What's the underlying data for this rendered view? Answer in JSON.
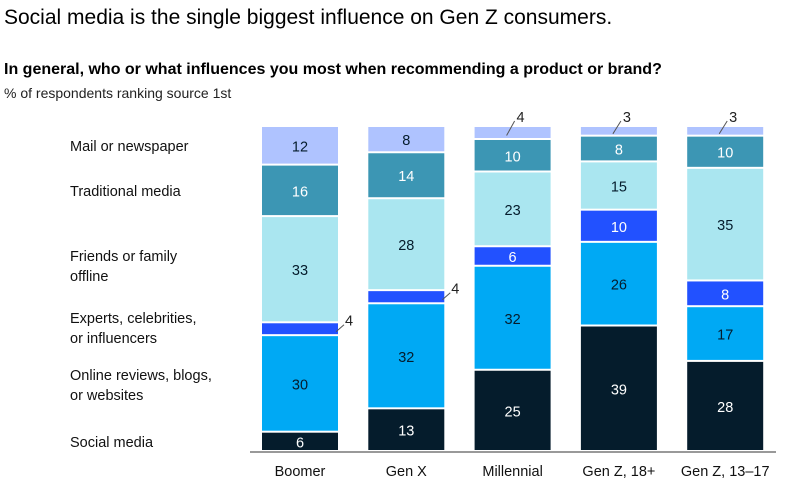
{
  "chart_data": {
    "type": "bar",
    "stacked": true,
    "title": "Social media is the single biggest influence on Gen Z consumers.",
    "question": "In general, who or what influences you most when recommending a product or brand?",
    "subtitle": "% of respondents ranking source 1st",
    "categories": [
      "Boomer",
      "Gen X",
      "Millennial",
      "Gen Z, 18+",
      "Gen Z, 13–17"
    ],
    "series": [
      {
        "name": "Social media",
        "label_lines": [
          "Social media"
        ],
        "color": "#051c2c",
        "text": "#fff",
        "values": [
          6,
          13,
          25,
          39,
          28
        ]
      },
      {
        "name": "Online reviews, blogs, or websites",
        "label_lines": [
          "Online reviews, blogs,",
          "or websites"
        ],
        "color": "#00a9f4",
        "text": "#051c2c",
        "values": [
          30,
          32,
          32,
          26,
          17
        ]
      },
      {
        "name": "Experts, celebrities, or influencers",
        "label_lines": [
          "Experts, celebrities,",
          "or influencers"
        ],
        "color": "#2251ff",
        "text": "#fff",
        "values": [
          4,
          4,
          6,
          10,
          8
        ]
      },
      {
        "name": "Friends or family offline",
        "label_lines": [
          "Friends or family",
          "offline"
        ],
        "color": "#aae6f0",
        "text": "#051c2c",
        "values": [
          33,
          28,
          23,
          15,
          35
        ]
      },
      {
        "name": "Traditional media",
        "label_lines": [
          "Traditional media"
        ],
        "color": "#3c96b4",
        "text": "#fff",
        "values": [
          16,
          14,
          10,
          8,
          10
        ]
      },
      {
        "name": "Mail or newspaper",
        "label_lines": [
          "Mail or newspaper"
        ],
        "color": "#afc3ff",
        "text": "#051c2c",
        "values": [
          12,
          8,
          4,
          3,
          3
        ]
      }
    ]
  }
}
